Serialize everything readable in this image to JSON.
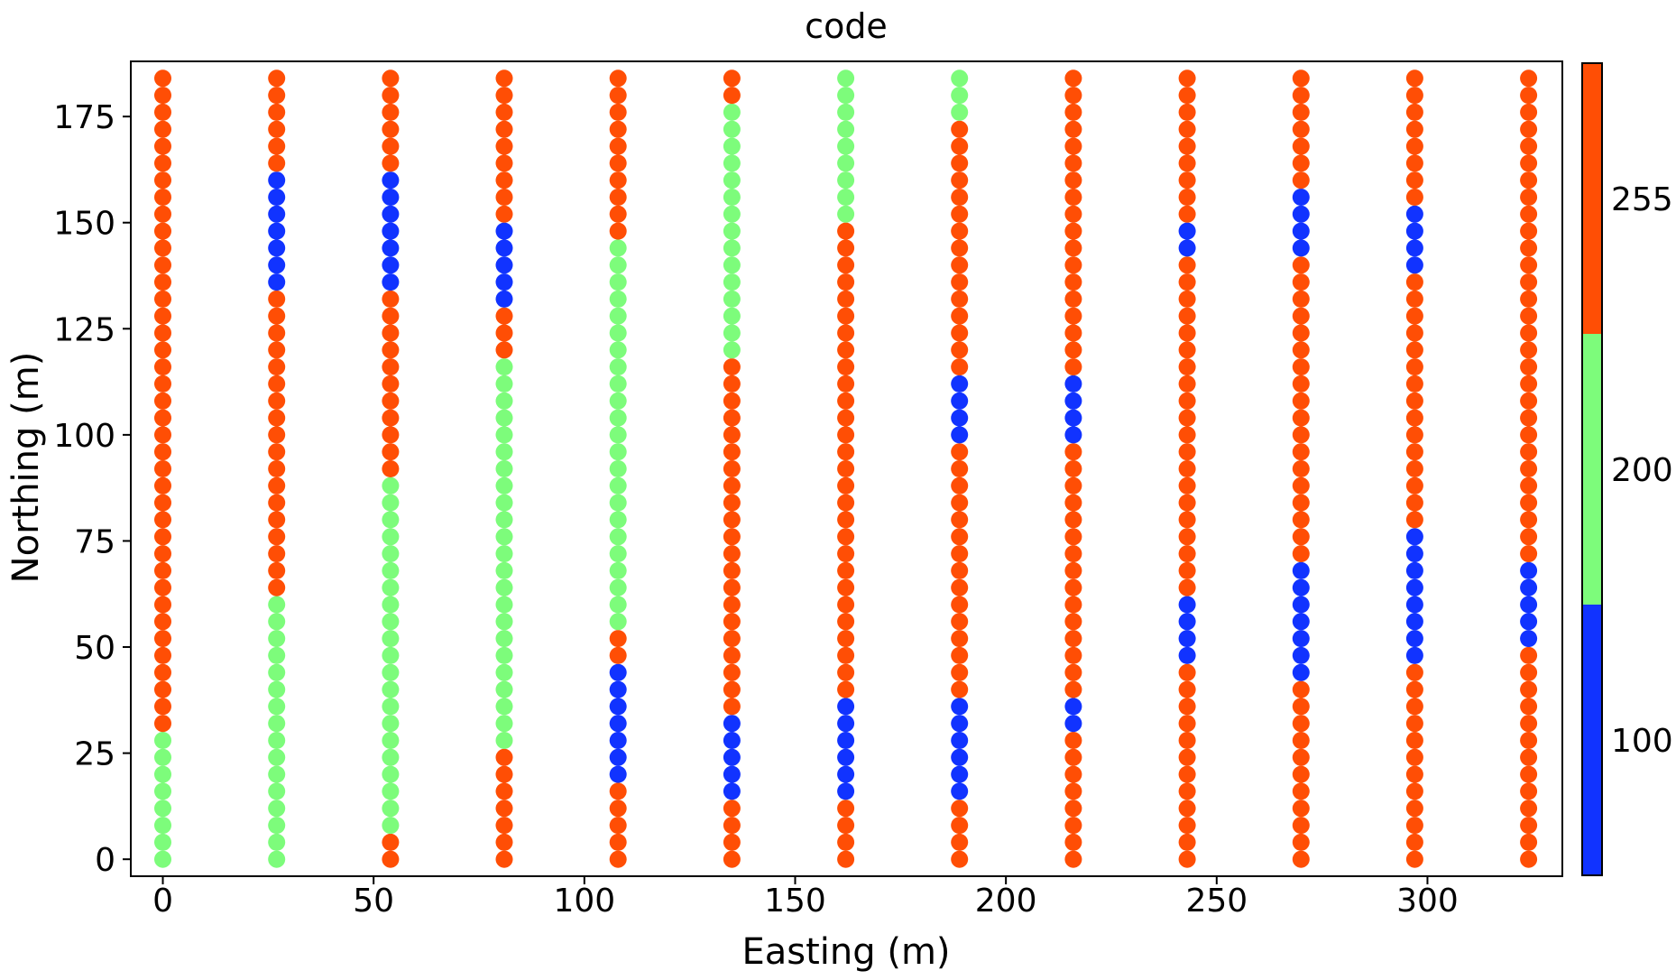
{
  "chart_data": {
    "type": "scatter",
    "title": "code",
    "xlabel": "Easting (m)",
    "ylabel": "Northing (m)",
    "xlim": [
      -7.6,
      332
    ],
    "ylim": [
      -4,
      188
    ],
    "xticks": [
      0,
      50,
      100,
      150,
      200,
      250,
      300
    ],
    "yticks": [
      0,
      25,
      50,
      75,
      100,
      125,
      150,
      175
    ],
    "grid": false,
    "colorbar": {
      "ticks": [
        "100",
        "200",
        "255"
      ],
      "classes": [
        {
          "code": 100,
          "color": "#1133ff"
        },
        {
          "code": 200,
          "color": "#7dfc7b"
        },
        {
          "code": 255,
          "color": "#ff4e05"
        }
      ]
    },
    "y_spacing": 4,
    "y_max": 184,
    "columns": [
      {
        "x": 0,
        "runs": [
          [
            0,
            28,
            200
          ],
          [
            32,
            184,
            255
          ]
        ]
      },
      {
        "x": 27,
        "runs": [
          [
            0,
            60,
            200
          ],
          [
            64,
            132,
            255
          ],
          [
            136,
            160,
            100
          ],
          [
            164,
            184,
            255
          ]
        ]
      },
      {
        "x": 54,
        "runs": [
          [
            0,
            4,
            255
          ],
          [
            8,
            88,
            200
          ],
          [
            92,
            132,
            255
          ],
          [
            136,
            160,
            100
          ],
          [
            164,
            184,
            255
          ]
        ]
      },
      {
        "x": 81,
        "runs": [
          [
            0,
            24,
            255
          ],
          [
            28,
            116,
            200
          ],
          [
            120,
            128,
            255
          ],
          [
            132,
            148,
            100
          ],
          [
            152,
            184,
            255
          ]
        ]
      },
      {
        "x": 108,
        "runs": [
          [
            0,
            16,
            255
          ],
          [
            20,
            44,
            100
          ],
          [
            48,
            52,
            255
          ],
          [
            56,
            144,
            200
          ],
          [
            148,
            184,
            255
          ]
        ]
      },
      {
        "x": 135,
        "runs": [
          [
            0,
            12,
            255
          ],
          [
            16,
            32,
            100
          ],
          [
            36,
            116,
            255
          ],
          [
            120,
            176,
            200
          ],
          [
            180,
            184,
            255
          ]
        ]
      },
      {
        "x": 162,
        "runs": [
          [
            0,
            12,
            255
          ],
          [
            16,
            36,
            100
          ],
          [
            40,
            148,
            255
          ],
          [
            152,
            184,
            200
          ]
        ]
      },
      {
        "x": 189,
        "runs": [
          [
            0,
            12,
            255
          ],
          [
            16,
            36,
            100
          ],
          [
            40,
            96,
            255
          ],
          [
            100,
            112,
            100
          ],
          [
            116,
            172,
            255
          ],
          [
            176,
            184,
            200
          ]
        ]
      },
      {
        "x": 216,
        "runs": [
          [
            0,
            28,
            255
          ],
          [
            32,
            36,
            100
          ],
          [
            40,
            96,
            255
          ],
          [
            100,
            112,
            100
          ],
          [
            116,
            184,
            255
          ]
        ]
      },
      {
        "x": 243,
        "runs": [
          [
            0,
            44,
            255
          ],
          [
            48,
            60,
            100
          ],
          [
            64,
            140,
            255
          ],
          [
            144,
            148,
            100
          ],
          [
            152,
            184,
            255
          ]
        ]
      },
      {
        "x": 270,
        "runs": [
          [
            0,
            40,
            255
          ],
          [
            44,
            68,
            100
          ],
          [
            72,
            140,
            255
          ],
          [
            144,
            156,
            100
          ],
          [
            160,
            184,
            255
          ]
        ]
      },
      {
        "x": 297,
        "runs": [
          [
            0,
            44,
            255
          ],
          [
            48,
            76,
            100
          ],
          [
            80,
            136,
            255
          ],
          [
            140,
            152,
            100
          ],
          [
            156,
            184,
            255
          ]
        ]
      },
      {
        "x": 324,
        "runs": [
          [
            0,
            48,
            255
          ],
          [
            52,
            68,
            100
          ],
          [
            72,
            184,
            255
          ]
        ]
      }
    ]
  }
}
